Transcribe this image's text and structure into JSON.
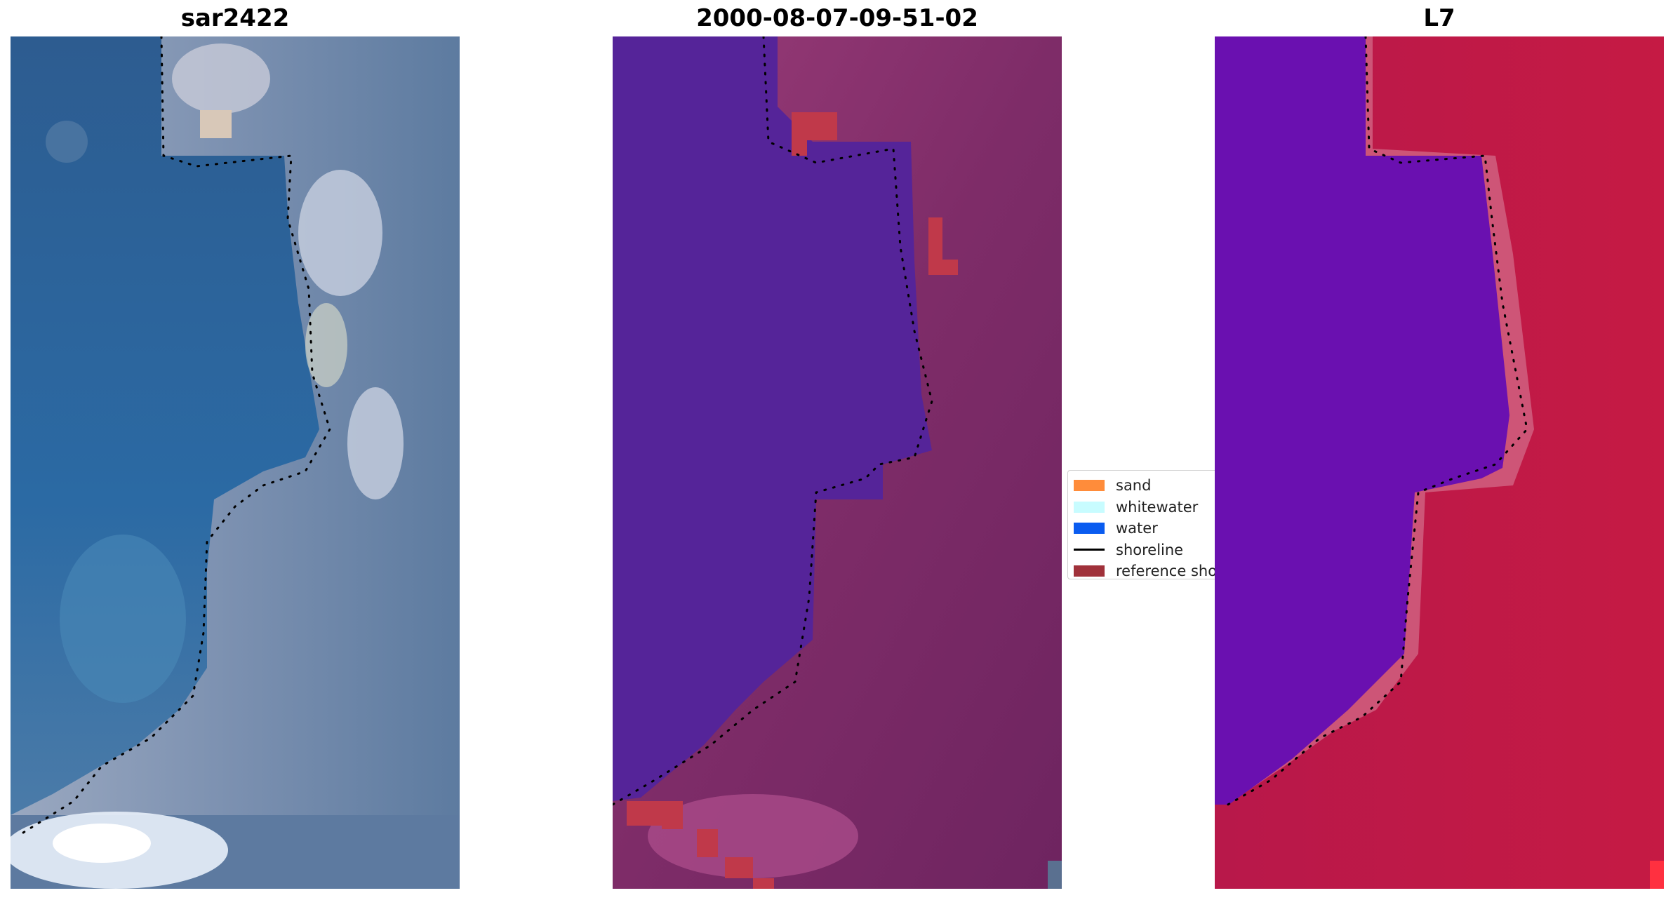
{
  "panels": [
    {
      "title": "sar2422"
    },
    {
      "title": "2000-08-07-09-51-02"
    },
    {
      "title": "L7"
    }
  ],
  "legend": {
    "items": [
      {
        "label": "sand",
        "color": "#ff8c3a",
        "kind": "patch"
      },
      {
        "label": "whitewater",
        "color": "#c8fcff",
        "kind": "patch"
      },
      {
        "label": "water",
        "color": "#0a5cf0",
        "kind": "patch"
      },
      {
        "label": "shoreline",
        "color": "#000000",
        "kind": "line"
      },
      {
        "label": "reference shoreline",
        "color": "#a0313a",
        "kind": "patch"
      }
    ]
  },
  "colors": {
    "rgb_water": "#2a5f96",
    "rgb_land": "#8a9cb8",
    "classified_water": "#552499",
    "classified_land": "#8a3370",
    "classified_reference": "#c0394a",
    "mndwi_water": "#6a10b0",
    "mndwi_land": "#c4163f"
  }
}
